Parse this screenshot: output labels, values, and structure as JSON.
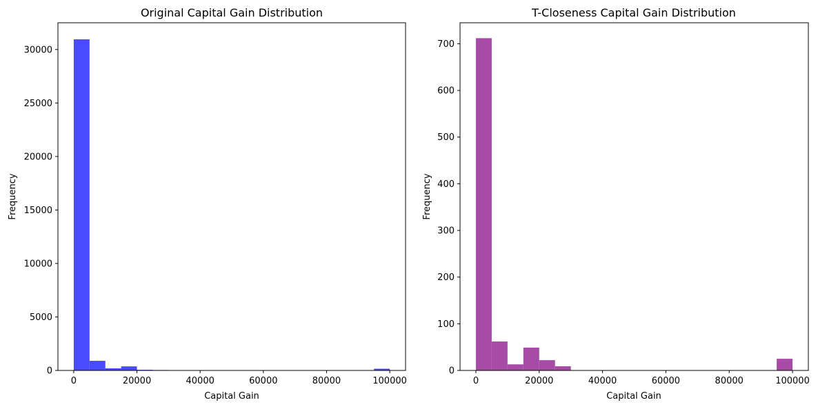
{
  "chart_data": [
    {
      "type": "bar",
      "title": "Original Capital Gain Distribution",
      "xlabel": "Capital Gain",
      "ylabel": "Frequency",
      "xlim": [
        -5000,
        105000
      ],
      "ylim": [
        0,
        32500
      ],
      "xticks": [
        0,
        20000,
        40000,
        60000,
        80000,
        100000
      ],
      "xtick_labels": [
        "0",
        "20000",
        "40000",
        "60000",
        "80000",
        "100000"
      ],
      "yticks": [
        0,
        5000,
        10000,
        15000,
        20000,
        25000,
        30000
      ],
      "ytick_labels": [
        "0",
        "5000",
        "10000",
        "15000",
        "20000",
        "25000",
        "30000"
      ],
      "color": "#4a4aff",
      "bin_edges": [
        0,
        5000,
        10000,
        15000,
        20000,
        25000,
        30000,
        35000,
        40000,
        45000,
        50000,
        55000,
        60000,
        65000,
        70000,
        75000,
        80000,
        85000,
        90000,
        95000,
        100000
      ],
      "values": [
        30950,
        900,
        200,
        380,
        60,
        40,
        0,
        0,
        0,
        0,
        0,
        0,
        0,
        0,
        0,
        0,
        0,
        0,
        0,
        160
      ]
    },
    {
      "type": "bar",
      "title": "T-Closeness Capital Gain Distribution",
      "xlabel": "Capital Gain",
      "ylabel": "Frequency",
      "xlim": [
        -5000,
        105000
      ],
      "ylim": [
        0,
        745
      ],
      "xticks": [
        0,
        20000,
        40000,
        60000,
        80000,
        100000
      ],
      "xtick_labels": [
        "0",
        "20000",
        "40000",
        "60000",
        "80000",
        "100000"
      ],
      "yticks": [
        0,
        100,
        200,
        300,
        400,
        500,
        600,
        700
      ],
      "ytick_labels": [
        "0",
        "100",
        "200",
        "300",
        "400",
        "500",
        "600",
        "700"
      ],
      "color": "#a64ca6",
      "bin_edges": [
        0,
        5000,
        10000,
        15000,
        20000,
        25000,
        30000,
        35000,
        40000,
        45000,
        50000,
        55000,
        60000,
        65000,
        70000,
        75000,
        80000,
        85000,
        90000,
        95000,
        100000
      ],
      "values": [
        712,
        62,
        13,
        49,
        22,
        9,
        0,
        0,
        0,
        0,
        0,
        0,
        0,
        0,
        0,
        0,
        0,
        0,
        0,
        25
      ]
    }
  ]
}
